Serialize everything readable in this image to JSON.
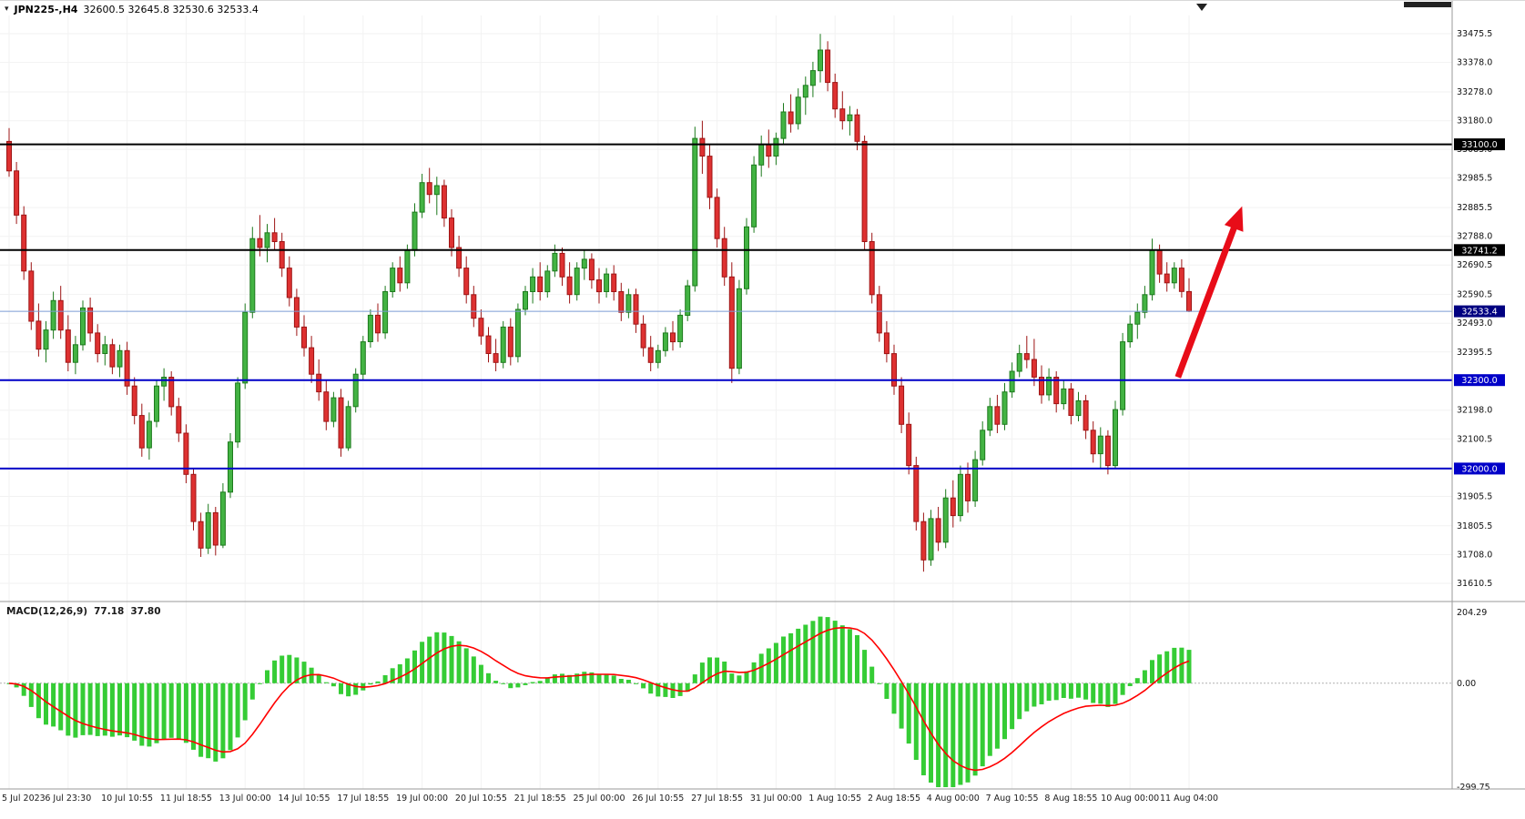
{
  "chart_data": {
    "type": "candlestick_with_macd",
    "title": "JPN225-,H4",
    "symbol": "JPN225-",
    "timeframe": "H4",
    "ohlc_text": "32600.5 32645.8 32530.6 32533.4",
    "ohlc": {
      "open": 32600.5,
      "high": 32645.8,
      "low": 32530.6,
      "close": 32533.4
    },
    "bid_price": 32533.4,
    "price_ticks": [
      "33475.5",
      "33378.0",
      "33278.0",
      "33180.0",
      "33083.0",
      "32985.5",
      "32885.5",
      "32788.0",
      "32690.5",
      "32590.5",
      "32493.0",
      "32395.5",
      "32298.0",
      "32198.0",
      "32100.5",
      "32003.0",
      "31905.5",
      "31805.5",
      "31708.0",
      "31610.5"
    ],
    "time_labels": [
      "5 Jul 2023",
      "6 Jul 23:30",
      "10 Jul 10:55",
      "11 Jul 18:55",
      "13 Jul 00:00",
      "14 Jul 10:55",
      "17 Jul 18:55",
      "19 Jul 00:00",
      "20 Jul 10:55",
      "21 Jul 18:55",
      "25 Jul 00:00",
      "26 Jul 10:55",
      "27 Jul 18:55",
      "31 Jul 00:00",
      "1 Aug 10:55",
      "2 Aug 18:55",
      "4 Aug 00:00",
      "7 Aug 10:55",
      "8 Aug 18:55",
      "10 Aug 00:00",
      "11 Aug 04:00"
    ],
    "bars_per_label": 8,
    "hlines": [
      {
        "price": 33100.0,
        "label": "33100.0",
        "line_color": "#000000",
        "width": 2,
        "badge_bg": "#000000"
      },
      {
        "price": 32741.2,
        "label": "32741.2",
        "line_color": "#000000",
        "width": 2,
        "badge_bg": "#000000"
      },
      {
        "price": 32533.4,
        "label": "32533.4",
        "line_color": "#7b9cd4",
        "width": 1,
        "badge_bg": "#000080",
        "role": "bid"
      },
      {
        "price": 32300.0,
        "label": "32300.0",
        "line_color": "#0000c8",
        "width": 2,
        "badge_bg": "#0000c8"
      },
      {
        "price": 32000.0,
        "label": "32000.0",
        "line_color": "#0000c8",
        "width": 2,
        "badge_bg": "#0000c8"
      }
    ],
    "candles": [
      [
        33110,
        33155,
        32990,
        33010
      ],
      [
        33010,
        33040,
        32830,
        32860
      ],
      [
        32860,
        32890,
        32640,
        32670
      ],
      [
        32670,
        32700,
        32470,
        32500
      ],
      [
        32500,
        32560,
        32380,
        32405
      ],
      [
        32405,
        32500,
        32360,
        32470
      ],
      [
        32470,
        32600,
        32440,
        32570
      ],
      [
        32570,
        32620,
        32440,
        32470
      ],
      [
        32470,
        32520,
        32330,
        32360
      ],
      [
        32360,
        32450,
        32320,
        32420
      ],
      [
        32420,
        32570,
        32400,
        32545
      ],
      [
        32545,
        32580,
        32430,
        32460
      ],
      [
        32460,
        32490,
        32360,
        32390
      ],
      [
        32390,
        32450,
        32350,
        32420
      ],
      [
        32420,
        32440,
        32320,
        32345
      ],
      [
        32345,
        32420,
        32310,
        32400
      ],
      [
        32400,
        32430,
        32250,
        32280
      ],
      [
        32280,
        32310,
        32150,
        32180
      ],
      [
        32180,
        32220,
        32040,
        32070
      ],
      [
        32070,
        32190,
        32030,
        32160
      ],
      [
        32160,
        32300,
        32140,
        32280
      ],
      [
        32280,
        32340,
        32230,
        32310
      ],
      [
        32310,
        32330,
        32180,
        32210
      ],
      [
        32210,
        32240,
        32090,
        32120
      ],
      [
        32120,
        32150,
        31950,
        31980
      ],
      [
        31980,
        32000,
        31790,
        31820
      ],
      [
        31820,
        31850,
        31700,
        31730
      ],
      [
        31730,
        31880,
        31710,
        31850
      ],
      [
        31850,
        31870,
        31705,
        31740
      ],
      [
        31740,
        31950,
        31730,
        31920
      ],
      [
        31920,
        32120,
        31900,
        32090
      ],
      [
        32090,
        32310,
        32070,
        32290
      ],
      [
        32290,
        32560,
        32270,
        32530
      ],
      [
        32530,
        32820,
        32510,
        32780
      ],
      [
        32780,
        32860,
        32720,
        32750
      ],
      [
        32750,
        32830,
        32700,
        32800
      ],
      [
        32800,
        32850,
        32740,
        32770
      ],
      [
        32770,
        32800,
        32650,
        32680
      ],
      [
        32680,
        32720,
        32550,
        32580
      ],
      [
        32580,
        32610,
        32450,
        32480
      ],
      [
        32480,
        32520,
        32380,
        32410
      ],
      [
        32410,
        32450,
        32290,
        32320
      ],
      [
        32320,
        32370,
        32230,
        32260
      ],
      [
        32260,
        32300,
        32130,
        32160
      ],
      [
        32160,
        32260,
        32140,
        32240
      ],
      [
        32240,
        32270,
        32040,
        32070
      ],
      [
        32070,
        32230,
        32060,
        32210
      ],
      [
        32210,
        32340,
        32190,
        32320
      ],
      [
        32320,
        32450,
        32300,
        32430
      ],
      [
        32430,
        32540,
        32410,
        32520
      ],
      [
        32520,
        32560,
        32430,
        32460
      ],
      [
        32460,
        32620,
        32440,
        32600
      ],
      [
        32600,
        32700,
        32580,
        32680
      ],
      [
        32680,
        32720,
        32600,
        32630
      ],
      [
        32630,
        32760,
        32610,
        32740
      ],
      [
        32740,
        32900,
        32720,
        32870
      ],
      [
        32870,
        33000,
        32850,
        32970
      ],
      [
        32970,
        33020,
        32900,
        32930
      ],
      [
        32930,
        32990,
        32860,
        32960
      ],
      [
        32960,
        32980,
        32820,
        32850
      ],
      [
        32850,
        32880,
        32720,
        32750
      ],
      [
        32750,
        32790,
        32650,
        32680
      ],
      [
        32680,
        32720,
        32560,
        32590
      ],
      [
        32590,
        32620,
        32480,
        32510
      ],
      [
        32510,
        32540,
        32420,
        32450
      ],
      [
        32450,
        32480,
        32360,
        32390
      ],
      [
        32390,
        32440,
        32330,
        32360
      ],
      [
        32360,
        32500,
        32340,
        32480
      ],
      [
        32480,
        32510,
        32350,
        32380
      ],
      [
        32380,
        32560,
        32360,
        32540
      ],
      [
        32540,
        32620,
        32520,
        32600
      ],
      [
        32600,
        32680,
        32560,
        32650
      ],
      [
        32650,
        32700,
        32570,
        32600
      ],
      [
        32600,
        32690,
        32580,
        32670
      ],
      [
        32670,
        32760,
        32650,
        32730
      ],
      [
        32730,
        32750,
        32620,
        32650
      ],
      [
        32650,
        32700,
        32560,
        32590
      ],
      [
        32590,
        32700,
        32570,
        32680
      ],
      [
        32680,
        32740,
        32640,
        32710
      ],
      [
        32710,
        32730,
        32610,
        32640
      ],
      [
        32640,
        32680,
        32560,
        32600
      ],
      [
        32600,
        32680,
        32580,
        32660
      ],
      [
        32660,
        32690,
        32570,
        32600
      ],
      [
        32600,
        32630,
        32500,
        32530
      ],
      [
        32530,
        32610,
        32510,
        32590
      ],
      [
        32590,
        32610,
        32460,
        32490
      ],
      [
        32490,
        32520,
        32380,
        32410
      ],
      [
        32410,
        32450,
        32330,
        32360
      ],
      [
        32360,
        32420,
        32340,
        32400
      ],
      [
        32400,
        32480,
        32380,
        32460
      ],
      [
        32460,
        32500,
        32400,
        32430
      ],
      [
        32430,
        32540,
        32410,
        32520
      ],
      [
        32520,
        32640,
        32500,
        32620
      ],
      [
        32620,
        33160,
        32600,
        33120
      ],
      [
        33120,
        33180,
        33000,
        33060
      ],
      [
        33060,
        33100,
        32880,
        32920
      ],
      [
        32920,
        32950,
        32750,
        32780
      ],
      [
        32780,
        32820,
        32620,
        32650
      ],
      [
        32650,
        32700,
        32290,
        32340
      ],
      [
        32340,
        32640,
        32320,
        32610
      ],
      [
        32610,
        32850,
        32590,
        32820
      ],
      [
        32820,
        33060,
        32800,
        33030
      ],
      [
        33030,
        33130,
        32990,
        33100
      ],
      [
        33100,
        33150,
        33020,
        33060
      ],
      [
        33060,
        33140,
        33030,
        33120
      ],
      [
        33120,
        33240,
        33100,
        33210
      ],
      [
        33210,
        33270,
        33140,
        33170
      ],
      [
        33170,
        33290,
        33150,
        33260
      ],
      [
        33260,
        33330,
        33200,
        33300
      ],
      [
        33300,
        33380,
        33260,
        33350
      ],
      [
        33350,
        33475,
        33310,
        33420
      ],
      [
        33420,
        33450,
        33280,
        33310
      ],
      [
        33310,
        33340,
        33190,
        33220
      ],
      [
        33220,
        33280,
        33150,
        33180
      ],
      [
        33180,
        33230,
        33130,
        33200
      ],
      [
        33200,
        33220,
        33080,
        33110
      ],
      [
        33110,
        33130,
        32740,
        32770
      ],
      [
        32770,
        32800,
        32560,
        32590
      ],
      [
        32590,
        32620,
        32430,
        32460
      ],
      [
        32460,
        32500,
        32360,
        32390
      ],
      [
        32390,
        32420,
        32250,
        32280
      ],
      [
        32280,
        32310,
        32120,
        32150
      ],
      [
        32150,
        32190,
        31980,
        32010
      ],
      [
        32010,
        32040,
        31790,
        31820
      ],
      [
        31820,
        31850,
        31650,
        31690
      ],
      [
        31690,
        31860,
        31670,
        31830
      ],
      [
        31830,
        31870,
        31720,
        31750
      ],
      [
        31750,
        31930,
        31730,
        31900
      ],
      [
        31900,
        31960,
        31800,
        31840
      ],
      [
        31840,
        32010,
        31820,
        31980
      ],
      [
        31980,
        32020,
        31850,
        31890
      ],
      [
        31890,
        32060,
        31870,
        32030
      ],
      [
        32030,
        32160,
        32010,
        32130
      ],
      [
        32130,
        32240,
        32110,
        32210
      ],
      [
        32210,
        32250,
        32120,
        32150
      ],
      [
        32150,
        32290,
        32130,
        32260
      ],
      [
        32260,
        32360,
        32240,
        32330
      ],
      [
        32330,
        32420,
        32310,
        32390
      ],
      [
        32390,
        32450,
        32340,
        32370
      ],
      [
        32370,
        32440,
        32280,
        32310
      ],
      [
        32310,
        32350,
        32220,
        32250
      ],
      [
        32250,
        32340,
        32230,
        32310
      ],
      [
        32310,
        32330,
        32190,
        32220
      ],
      [
        32220,
        32300,
        32200,
        32270
      ],
      [
        32270,
        32290,
        32150,
        32180
      ],
      [
        32180,
        32260,
        32160,
        32230
      ],
      [
        32230,
        32250,
        32100,
        32130
      ],
      [
        32130,
        32160,
        32020,
        32050
      ],
      [
        32050,
        32140,
        32000,
        32110
      ],
      [
        32110,
        32130,
        31980,
        32010
      ],
      [
        32010,
        32230,
        32000,
        32200
      ],
      [
        32200,
        32460,
        32180,
        32430
      ],
      [
        32430,
        32520,
        32410,
        32490
      ],
      [
        32490,
        32560,
        32440,
        32530
      ],
      [
        32530,
        32620,
        32510,
        32590
      ],
      [
        32590,
        32780,
        32570,
        32740
      ],
      [
        32740,
        32760,
        32630,
        32660
      ],
      [
        32660,
        32700,
        32600,
        32630
      ],
      [
        32630,
        32700,
        32610,
        32680
      ],
      [
        32680,
        32710,
        32580,
        32600.5
      ],
      [
        32600.5,
        32645.8,
        32530.6,
        32533.4
      ]
    ],
    "macd": {
      "label_text": "MACD(12,26,9)",
      "main_value": "77.18",
      "signal_value": "37.80",
      "fast": 12,
      "slow": 26,
      "signal": 9,
      "axis_ticks": [
        "204.29",
        "0.00",
        "-299.75"
      ],
      "axis_max": 204.29,
      "axis_min": -299.75
    },
    "annotations": [
      {
        "type": "arrow",
        "from_bar": 158.5,
        "from_price": 32310,
        "to_bar": 167.2,
        "to_price": 32890,
        "color": "#e80c18"
      }
    ],
    "colors": {
      "up_fill": "#43b343",
      "up_stroke": "#1d7a1d",
      "down_fill": "#de3131",
      "down_stroke": "#9d1414",
      "macd_hist": "#35cc35",
      "macd_signal": "#ff0000",
      "grid": "#f2f2f2",
      "separator": "#9a9a9a"
    }
  }
}
